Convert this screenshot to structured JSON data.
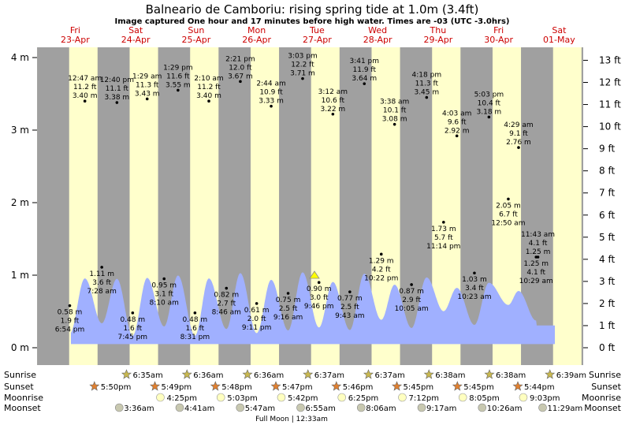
{
  "title": "Balneario de Camboriu: rising  spring tide at 1.0m (3.4ft)",
  "subtitle": "Image captured One hour and 17 minutes before high water. Times are -03 (UTC -3.0hrs)",
  "colors": {
    "day": "#ffffcc",
    "night": "#a0a0a0",
    "tide_fill": "#a0b0ff",
    "day_label": "#cc0000",
    "sun": "#c8b850",
    "sunset": "#e08030",
    "moonrise": "#ffffc0",
    "moonset": "#c8c8b0"
  },
  "chart_data": {
    "type": "area",
    "x_axis": "time (days)",
    "y_left_unit": "m",
    "y_right_unit": "ft",
    "ylim_m": [
      -0.1,
      4.3
    ],
    "y_left_ticks": [
      "0 m",
      "1 m",
      "2 m",
      "3 m",
      "4 m"
    ],
    "y_right_ticks": [
      "0 ft",
      "1 ft",
      "2 ft",
      "3 ft",
      "4 ft",
      "5 ft",
      "6 ft",
      "7 ft",
      "8 ft",
      "9 ft",
      "10 ft",
      "11 ft",
      "12 ft",
      "13 ft"
    ],
    "days": [
      {
        "dow": "Fri",
        "date": "23-Apr"
      },
      {
        "dow": "Sat",
        "date": "24-Apr"
      },
      {
        "dow": "Sun",
        "date": "25-Apr"
      },
      {
        "dow": "Mon",
        "date": "26-Apr"
      },
      {
        "dow": "Tue",
        "date": "27-Apr"
      },
      {
        "dow": "Wed",
        "date": "28-Apr"
      },
      {
        "dow": "Thu",
        "date": "29-Apr"
      },
      {
        "dow": "Fri",
        "date": "30-Apr"
      },
      {
        "dow": "Sat",
        "date": "01-May"
      }
    ],
    "current_tide_m": 1.0,
    "extremes": [
      {
        "day": 0.28,
        "m": 0.58,
        "lines": [
          "0.58 m",
          "1.9 ft",
          "6:54 pm"
        ],
        "side": "below"
      },
      {
        "day": 0.53,
        "m": 3.4,
        "lines": [
          "12:47 am",
          "11.2 ft",
          "3.40 m"
        ],
        "side": "above"
      },
      {
        "day": 0.81,
        "m": 1.11,
        "lines": [
          "1.11 m",
          "3.6 ft",
          "7:28 am"
        ],
        "side": "below"
      },
      {
        "day": 1.06,
        "m": 3.38,
        "lines": [
          "12:40 pm",
          "11.1 ft",
          "3.38 m"
        ],
        "side": "above"
      },
      {
        "day": 1.32,
        "m": 0.48,
        "lines": [
          "0.48 m",
          "1.6 ft",
          "7:45 pm"
        ],
        "side": "below"
      },
      {
        "day": 1.56,
        "m": 3.43,
        "lines": [
          "1:29 am",
          "11.3 ft",
          "3.43 m"
        ],
        "side": "above"
      },
      {
        "day": 1.84,
        "m": 0.95,
        "lines": [
          "0.95 m",
          "3.1 ft",
          "8:10 am"
        ],
        "side": "below"
      },
      {
        "day": 2.07,
        "m": 3.55,
        "lines": [
          "1:29 pm",
          "11.6 ft",
          "3.55 m"
        ],
        "side": "above"
      },
      {
        "day": 2.35,
        "m": 0.48,
        "lines": [
          "0.48 m",
          "1.6 ft",
          "8:31 pm"
        ],
        "side": "below"
      },
      {
        "day": 2.58,
        "m": 3.4,
        "lines": [
          "2:10 am",
          "11.2 ft",
          "3.40 m"
        ],
        "side": "above"
      },
      {
        "day": 2.87,
        "m": 0.82,
        "lines": [
          "0.82 m",
          "2.7 ft",
          "8:46 am"
        ],
        "side": "below"
      },
      {
        "day": 3.1,
        "m": 3.67,
        "lines": [
          "2:21 pm",
          "12.0 ft",
          "3.67 m"
        ],
        "side": "above"
      },
      {
        "day": 3.37,
        "m": 0.61,
        "lines": [
          "0.61 m",
          "2.0 ft",
          "9:11 pm"
        ],
        "side": "below"
      },
      {
        "day": 3.61,
        "m": 3.33,
        "lines": [
          "2:44 am",
          "10.9 ft",
          "3.33 m"
        ],
        "side": "above"
      },
      {
        "day": 3.89,
        "m": 0.75,
        "lines": [
          "0.75 m",
          "2.5 ft",
          "9:16 am"
        ],
        "side": "below"
      },
      {
        "day": 4.13,
        "m": 3.71,
        "lines": [
          "3:03 pm",
          "12.2 ft",
          "3.71 m"
        ],
        "side": "above"
      },
      {
        "day": 4.4,
        "m": 0.9,
        "lines": [
          "0.90 m",
          "3.0 ft",
          "9:46 pm"
        ],
        "side": "below"
      },
      {
        "day": 4.63,
        "m": 3.22,
        "lines": [
          "3:12 am",
          "10.6 ft",
          "3.22 m"
        ],
        "side": "above"
      },
      {
        "day": 4.91,
        "m": 0.77,
        "lines": [
          "0.77 m",
          "2.5 ft",
          "9:43 am"
        ],
        "side": "below"
      },
      {
        "day": 5.15,
        "m": 3.64,
        "lines": [
          "3:41 pm",
          "11.9 ft",
          "3.64 m"
        ],
        "side": "above"
      },
      {
        "day": 5.43,
        "m": 1.29,
        "lines": [
          "1.29 m",
          "4.2 ft",
          "10:22 pm"
        ],
        "side": "below"
      },
      {
        "day": 5.65,
        "m": 3.08,
        "lines": [
          "3:38 am",
          "10.1 ft",
          "3.08 m"
        ],
        "side": "above"
      },
      {
        "day": 5.93,
        "m": 0.87,
        "lines": [
          "0.87 m",
          "2.9 ft",
          "10:05 am"
        ],
        "side": "below"
      },
      {
        "day": 6.18,
        "m": 3.45,
        "lines": [
          "4:18 pm",
          "11.3 ft",
          "3.45 m"
        ],
        "side": "above"
      },
      {
        "day": 6.46,
        "m": 1.73,
        "lines": [
          "1.73 m",
          "5.7 ft",
          "11:14 pm"
        ],
        "side": "below"
      },
      {
        "day": 6.68,
        "m": 2.92,
        "lines": [
          "4:03 am",
          "9.6 ft",
          "2.92 m"
        ],
        "side": "above"
      },
      {
        "day": 6.97,
        "m": 1.03,
        "lines": [
          "1.03 m",
          "3.4 ft",
          "10:23 am"
        ],
        "side": "below"
      },
      {
        "day": 7.21,
        "m": 3.18,
        "lines": [
          "5:03 pm",
          "10.4 ft",
          "3.18 m"
        ],
        "side": "above"
      },
      {
        "day": 7.53,
        "m": 2.05,
        "lines": [
          "2.05 m",
          "6.7 ft",
          "12:50 am"
        ],
        "side": "below"
      },
      {
        "day": 7.7,
        "m": 2.76,
        "lines": [
          "4:29 am",
          "9.1 ft",
          "2.76 m"
        ],
        "side": "above"
      },
      {
        "day": 8.02,
        "m": 1.25,
        "lines": [
          "11:43 am",
          "4.1 ft",
          "1.25 m"
        ],
        "side": "above"
      },
      {
        "day": 7.99,
        "m": 1.25,
        "lines": [
          "1.25 m",
          "4.1 ft",
          "10:29 am"
        ],
        "side": "below"
      }
    ],
    "footer_rows": {
      "labels": [
        "Sunrise",
        "Sunset",
        "Moonrise",
        "Moonset"
      ],
      "sunrise": [
        "6:35am",
        "6:36am",
        "6:36am",
        "6:37am",
        "6:37am",
        "6:38am",
        "6:38am",
        "6:39am"
      ],
      "sunset": [
        "5:50pm",
        "5:49pm",
        "5:48pm",
        "5:47pm",
        "5:46pm",
        "5:45pm",
        "5:45pm",
        "5:44pm"
      ],
      "moonrise": [
        "4:25pm",
        "5:03pm",
        "5:42pm",
        "6:25pm",
        "7:12pm",
        "8:05pm",
        "9:03pm"
      ],
      "moonset": [
        "3:36am",
        "4:41am",
        "5:47am",
        "6:55am",
        "8:06am",
        "9:17am",
        "10:26am",
        "11:29am"
      ],
      "moon_phase": "Full Moon | 12:33am"
    }
  }
}
